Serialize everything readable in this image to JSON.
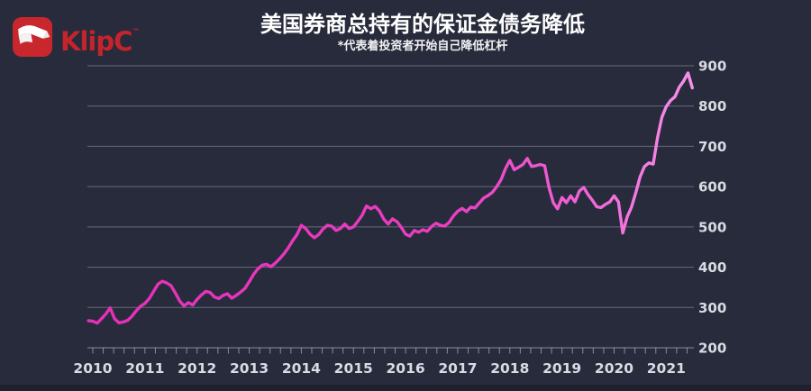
{
  "brand": {
    "wordmark": "KlipC",
    "trademark": "™",
    "brand_red": "#C4242B",
    "icon_red": "#C9272E",
    "icon": "ribbon-icon"
  },
  "header": {
    "title": "美国券商总持有的保证金债务降低",
    "subtitle": "*代表着投资者开始自己降低杠杆"
  },
  "chart_data": {
    "type": "line",
    "title": "美国券商总持有的保证金债务降低",
    "subtitle": "*代表着投资者开始自己降低杠杆",
    "x_tick_labels": [
      "2010",
      "2011",
      "2012",
      "2013",
      "2014",
      "2015",
      "2016",
      "2017",
      "2018",
      "2019",
      "2020",
      "2021"
    ],
    "y_ticks": [
      200,
      300,
      400,
      500,
      600,
      700,
      800,
      900
    ],
    "ylim": [
      200,
      900
    ],
    "grid": "horizontal",
    "y_axis_side": "right",
    "minor_x_ticks_per_year": 5,
    "line_gradient": [
      "#E52FB8",
      "#EA3EC2",
      "#F163D6",
      "#F890EC"
    ],
    "series": [
      {
        "name": "total_margin_debt",
        "start": "2009-12",
        "frequency": "monthly",
        "values": [
          267,
          266,
          261,
          272,
          284,
          299,
          272,
          262,
          264,
          268,
          278,
          292,
          303,
          310,
          322,
          340,
          358,
          365,
          361,
          354,
          336,
          316,
          304,
          312,
          306,
          320,
          331,
          340,
          337,
          326,
          322,
          330,
          334,
          323,
          330,
          338,
          347,
          364,
          382,
          396,
          405,
          407,
          401,
          410,
          421,
          433,
          448,
          466,
          481,
          504,
          496,
          482,
          473,
          481,
          495,
          504,
          502,
          491,
          496,
          507,
          496,
          500,
          514,
          529,
          552,
          545,
          551,
          539,
          519,
          507,
          520,
          513,
          499,
          482,
          477,
          491,
          487,
          493,
          489,
          501,
          509,
          504,
          502,
          511,
          527,
          539,
          546,
          538,
          549,
          547,
          560,
          572,
          578,
          586,
          600,
          618,
          645,
          665,
          642,
          648,
          655,
          670,
          650,
          652,
          655,
          652,
          598,
          560,
          545,
          573,
          560,
          577,
          562,
          589,
          598,
          580,
          566,
          550,
          548,
          556,
          562,
          577,
          562,
          485,
          525,
          549,
          585,
          625,
          650,
          659,
          656,
          722,
          772,
          799,
          814,
          823,
          847,
          862,
          882,
          845
        ]
      }
    ]
  },
  "colors": {
    "background": "#272B3B",
    "footer_strip": "#1E212E",
    "gridline": "#8F93A6",
    "axis": "#A9ADBD",
    "tick_label": "#D9DBE3",
    "title_text": "#FFFFFF"
  }
}
